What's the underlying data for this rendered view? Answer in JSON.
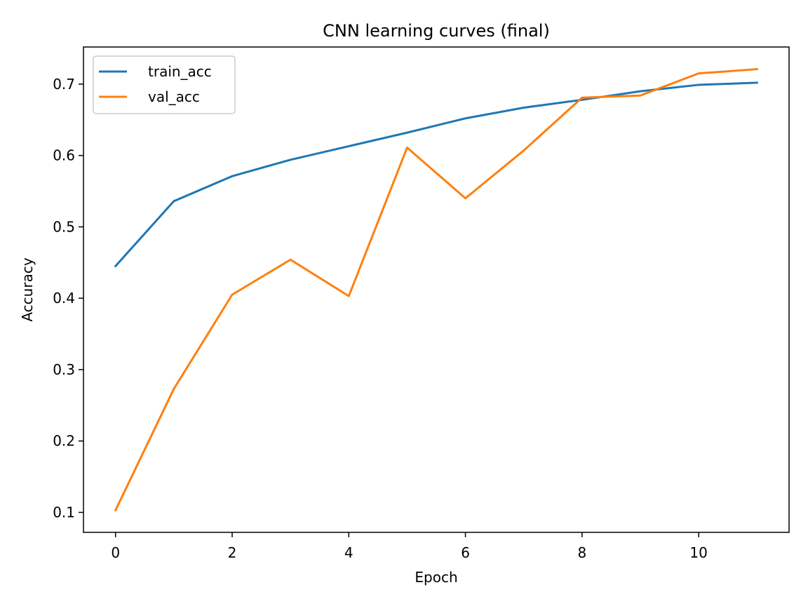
{
  "chart_data": {
    "type": "line",
    "title": "CNN learning curves (final)",
    "xlabel": "Epoch",
    "ylabel": "Accuracy",
    "x": [
      0,
      1,
      2,
      3,
      4,
      5,
      6,
      7,
      8,
      9,
      10,
      11
    ],
    "series": [
      {
        "name": "train_acc",
        "color": "#1f77b4",
        "values": [
          0.445,
          0.536,
          0.571,
          0.594,
          0.613,
          0.632,
          0.652,
          0.667,
          0.678,
          0.69,
          0.699,
          0.702
        ]
      },
      {
        "name": "val_acc",
        "color": "#ff7f0e",
        "values": [
          0.103,
          0.273,
          0.405,
          0.454,
          0.403,
          0.611,
          0.54,
          0.607,
          0.681,
          0.684,
          0.715,
          0.721
        ]
      }
    ],
    "xlim": [
      -0.55,
      11.55
    ],
    "ylim": [
      0.072,
      0.752
    ],
    "xticks": [
      0,
      2,
      4,
      6,
      8,
      10
    ],
    "yticks": [
      0.1,
      0.2,
      0.3,
      0.4,
      0.5,
      0.6,
      0.7
    ],
    "xtick_labels": [
      "0",
      "2",
      "4",
      "6",
      "8",
      "10"
    ],
    "ytick_labels": [
      "0.1",
      "0.2",
      "0.3",
      "0.4",
      "0.5",
      "0.6",
      "0.7"
    ],
    "grid": false,
    "legend_position": "upper-left"
  }
}
